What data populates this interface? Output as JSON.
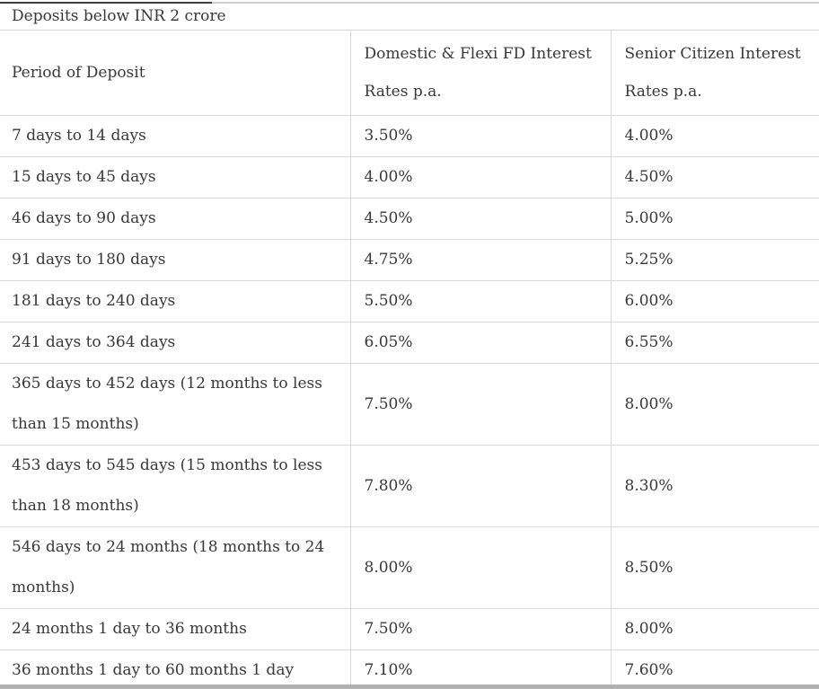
{
  "table": {
    "title": "Deposits below INR 2 crore",
    "columns": [
      "Period of Deposit",
      "Domestic & Flexi FD Interest Rates p.a.",
      "Senior Citizen Interest Rates p.a."
    ],
    "rows": [
      [
        "7 days to 14 days",
        "3.50%",
        "4.00%"
      ],
      [
        "15 days to 45 days",
        "4.00%",
        "4.50%"
      ],
      [
        "46 days to 90 days",
        "4.50%",
        "5.00%"
      ],
      [
        "91 days to 180 days",
        "4.75%",
        "5.25%"
      ],
      [
        "181 days to 240 days",
        "5.50%",
        "6.00%"
      ],
      [
        "241 days to 364 days",
        "6.05%",
        "6.55%"
      ],
      [
        "365 days to 452 days (12 months to less than 15 months)",
        "7.50%",
        "8.00%"
      ],
      [
        "453 days to 545 days (15 months to less than 18 months)",
        "7.80%",
        "8.30%"
      ],
      [
        "546 days to 24 months (18 months to 24 months)",
        "8.00%",
        "8.50%"
      ],
      [
        "24 months 1 day to 36 months",
        "7.50%",
        "8.00%"
      ],
      [
        "36 months 1 day to 60 months 1 day",
        "7.10%",
        "7.60%"
      ]
    ]
  },
  "colors": {
    "background": "#ffffff",
    "text": "#383838",
    "grid_line": "#d9d9d9",
    "top_border_light": "#cfcfcf",
    "top_border_dark": "#3f3f3f",
    "bottom_bar": "#b1b1b1"
  }
}
